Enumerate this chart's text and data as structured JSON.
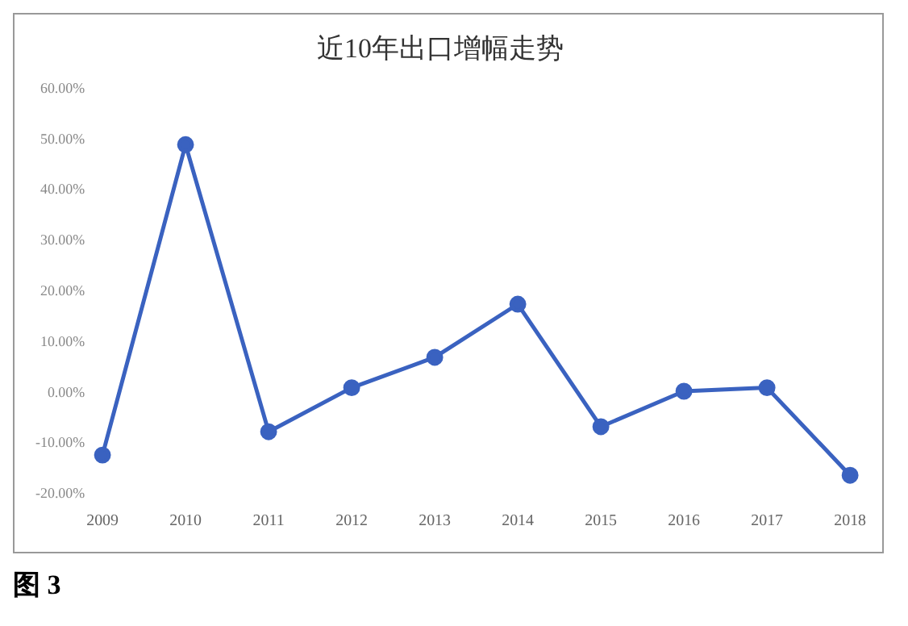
{
  "chart_data": {
    "type": "line",
    "title": "近10年出口增幅走势",
    "categories": [
      "2009",
      "2010",
      "2011",
      "2012",
      "2013",
      "2014",
      "2015",
      "2016",
      "2017",
      "2018"
    ],
    "series": [
      {
        "color": "#3a62c0",
        "values": [
          -12.3,
          49,
          -7.7,
          1,
          7,
          17.5,
          -6.7,
          0.3,
          1,
          -16.3
        ]
      }
    ],
    "ylim": [
      -20,
      60
    ],
    "yticks": [
      {
        "value": -20,
        "label": "-20.00%"
      },
      {
        "value": -10,
        "label": "-10.00%"
      },
      {
        "value": 0,
        "label": "0.00%"
      },
      {
        "value": 10,
        "label": "10.00%"
      },
      {
        "value": 20,
        "label": "20.00%"
      },
      {
        "value": 30,
        "label": "30.00%"
      },
      {
        "value": 40,
        "label": "40.00%"
      },
      {
        "value": 50,
        "label": "50.00%"
      },
      {
        "value": 60,
        "label": "60.00%"
      }
    ],
    "grid": false,
    "legend": false,
    "marker": "circle",
    "line_style": "solid",
    "annotations": [
      "图 3"
    ]
  }
}
